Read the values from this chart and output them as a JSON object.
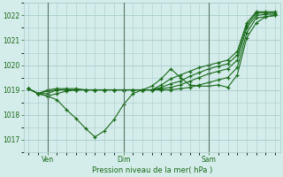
{
  "title": "Pression niveau de la mer( hPa )",
  "background_color": "#d4ecea",
  "grid_color": "#a8cccc",
  "line_color": "#1a6b1a",
  "vline_color": "#557766",
  "ylim": [
    1016.5,
    1022.5
  ],
  "yticks": [
    1017,
    1018,
    1019,
    1020,
    1021,
    1022
  ],
  "xtick_labels": [
    "Ven",
    "Dim",
    "Sam"
  ],
  "xtick_positions": [
    2,
    10,
    19
  ],
  "total_points": 27,
  "series1": [
    1019.05,
    1018.85,
    1018.75,
    1018.6,
    1018.2,
    1017.85,
    1017.45,
    1017.1,
    1017.35,
    1017.8,
    1018.4,
    1018.85,
    1019.0,
    1019.15,
    1019.45,
    1019.85,
    1019.5,
    1019.2,
    1019.15,
    1019.15,
    1019.2,
    1019.1,
    1019.6,
    1021.1,
    1021.7,
    1021.95,
    1022.0
  ],
  "series2": [
    1019.05,
    1018.85,
    1018.75,
    1018.85,
    1018.95,
    1019.0,
    1019.0,
    1019.0,
    1019.0,
    1019.0,
    1019.0,
    1019.0,
    1019.0,
    1019.0,
    1019.0,
    1019.0,
    1019.05,
    1019.1,
    1019.2,
    1019.3,
    1019.4,
    1019.5,
    1019.9,
    1021.3,
    1021.9,
    1021.95,
    1022.0
  ],
  "series3": [
    1019.05,
    1018.85,
    1018.85,
    1019.0,
    1019.0,
    1019.0,
    1019.0,
    1019.0,
    1019.0,
    1019.0,
    1019.0,
    1019.0,
    1019.0,
    1019.0,
    1019.05,
    1019.1,
    1019.2,
    1019.35,
    1019.5,
    1019.65,
    1019.75,
    1019.85,
    1020.2,
    1021.5,
    1022.0,
    1022.05,
    1022.05
  ],
  "series4": [
    1019.05,
    1018.85,
    1018.95,
    1019.0,
    1019.0,
    1019.0,
    1019.0,
    1019.0,
    1019.0,
    1019.0,
    1019.0,
    1019.0,
    1019.0,
    1019.0,
    1019.1,
    1019.25,
    1019.35,
    1019.55,
    1019.7,
    1019.85,
    1019.95,
    1020.05,
    1020.4,
    1021.6,
    1022.1,
    1022.1,
    1022.1
  ],
  "series5": [
    1019.05,
    1018.85,
    1019.0,
    1019.05,
    1019.05,
    1019.05,
    1019.0,
    1019.0,
    1019.0,
    1019.0,
    1019.0,
    1019.0,
    1019.0,
    1019.0,
    1019.2,
    1019.45,
    1019.6,
    1019.75,
    1019.9,
    1020.0,
    1020.1,
    1020.2,
    1020.55,
    1021.7,
    1022.15,
    1022.15,
    1022.15
  ]
}
